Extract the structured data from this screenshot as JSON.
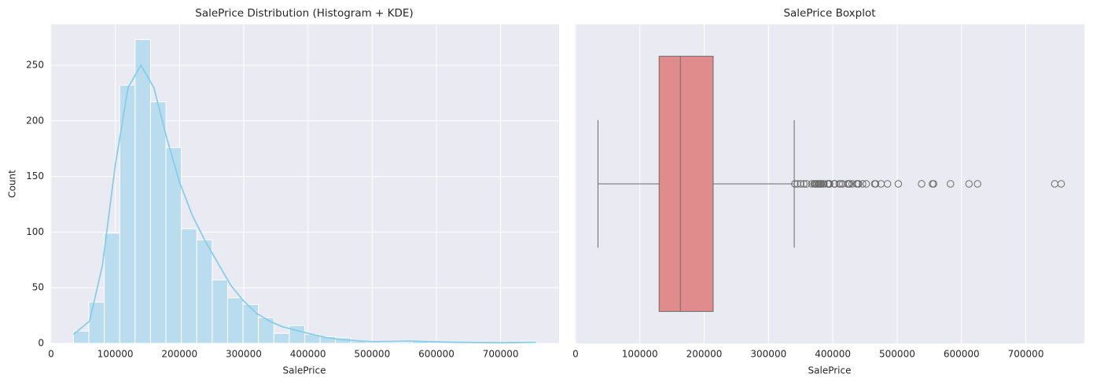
{
  "chart_data": [
    {
      "type": "histogram",
      "title": "SalePrice Distribution (Histogram + KDE)",
      "x_label": "SalePrice",
      "y_label": "Count",
      "bins": [
        34900,
        58903,
        82907,
        106910,
        130913,
        154917,
        178920,
        202923,
        226927,
        250930,
        274933,
        298937,
        322940,
        346943,
        370947,
        394950,
        418953,
        442957,
        466960,
        490963,
        514967,
        538970,
        562973,
        586977,
        610980,
        634983,
        658987,
        682990,
        706993,
        730997,
        755000
      ],
      "values": [
        11,
        37,
        99,
        232,
        273,
        217,
        176,
        103,
        93,
        57,
        41,
        35,
        23,
        9,
        16,
        8,
        6,
        5,
        2,
        0,
        1,
        1,
        2,
        0,
        1,
        1,
        0,
        0,
        0,
        2
      ],
      "color": "#b9dcee",
      "edge_color": "#ffffff",
      "kde": {
        "color": "#87ceeb",
        "x": [
          34900,
          60000,
          80000,
          100000,
          120000,
          140000,
          160000,
          180000,
          200000,
          220000,
          240000,
          260000,
          280000,
          300000,
          320000,
          340000,
          360000,
          380000,
          400000,
          430000,
          460000,
          500000,
          560000,
          620000,
          700000,
          755000
        ],
        "values": [
          8,
          20,
          70,
          160,
          230,
          250,
          230,
          185,
          145,
          115,
          92,
          72,
          52,
          38,
          27,
          20,
          15,
          12,
          9,
          5,
          3,
          1.5,
          2,
          1,
          0.5,
          1
        ]
      },
      "xlim": [
        -1105,
        791005
      ],
      "ylim": [
        0,
        286.7
      ],
      "xticks": [
        0,
        100000,
        200000,
        300000,
        400000,
        500000,
        600000,
        700000
      ],
      "yticks": [
        0,
        50,
        100,
        150,
        200,
        250
      ],
      "grid": true
    },
    {
      "type": "boxplot",
      "title": "SalePrice Boxplot",
      "x_label": "SalePrice",
      "whislo": 34900,
      "q1": 129975,
      "median": 163000,
      "q3": 214000,
      "whishi": 340000,
      "fliers": [
        341000,
        345000,
        350000,
        355000,
        359100,
        367294,
        370878,
        372402,
        374000,
        375000,
        377426,
        378500,
        380000,
        381000,
        382000,
        385000,
        386250,
        392000,
        392500,
        394432,
        394617,
        395000,
        402000,
        402861,
        403000,
        410000,
        412500,
        415298,
        423000,
        424870,
        426000,
        430000,
        437154,
        438780,
        440000,
        446261,
        451950,
        465000,
        466500,
        475000,
        485000,
        501837,
        538000,
        555000,
        556581,
        582933,
        611657,
        625000,
        745000,
        755000
      ],
      "color": "#e08c8c",
      "line_color": "#6b6b6b",
      "xlim": [
        -1105,
        791005
      ],
      "xticks": [
        0,
        100000,
        200000,
        300000,
        400000,
        500000,
        600000,
        700000
      ],
      "grid": true
    }
  ]
}
